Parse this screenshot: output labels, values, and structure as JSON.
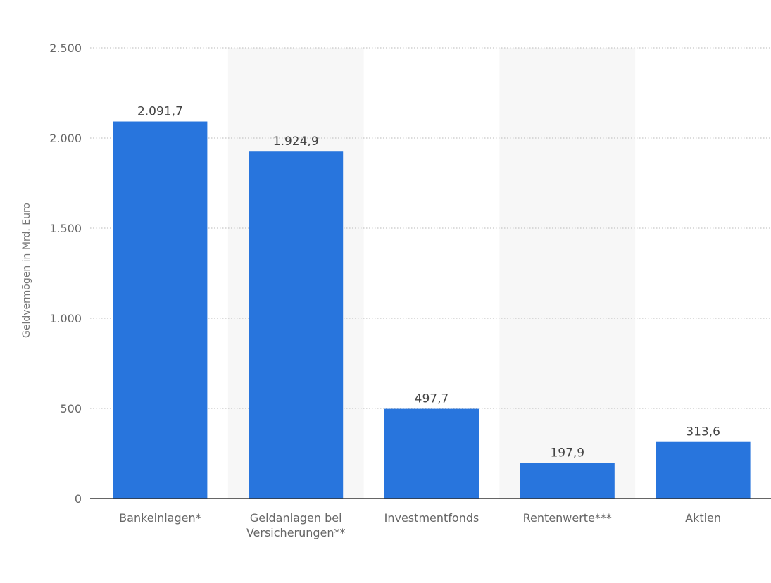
{
  "chart_data": {
    "type": "bar",
    "categories": [
      [
        "Bankeinlagen*"
      ],
      [
        "Geldanlagen bei",
        "Versicherungen**"
      ],
      [
        "Investmentfonds"
      ],
      [
        "Rentenwerte***"
      ],
      [
        "Aktien"
      ]
    ],
    "values": [
      2091.7,
      1924.9,
      497.7,
      197.9,
      313.6
    ],
    "value_labels": [
      "2.091,7",
      "1.924,9",
      "497,7",
      "197,9",
      "313,6"
    ],
    "ylabel": "Geldvermögen in Mrd. Euro",
    "xlabel": "",
    "ylim": [
      0,
      2500
    ],
    "yticks": [
      0,
      500,
      1000,
      1500,
      2000,
      2500
    ],
    "ytick_labels": [
      "0",
      "500",
      "1.000",
      "1.500",
      "2.000",
      "2.500"
    ],
    "grid": true,
    "colors": {
      "bar": "#2875dd",
      "band": "#f7f7f7",
      "grid": "#b8b8b8",
      "axis": "#333333"
    }
  }
}
